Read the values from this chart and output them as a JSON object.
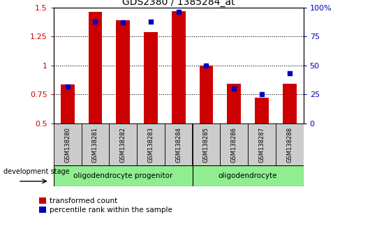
{
  "title": "GDS2380 / 1385284_at",
  "samples": [
    "GSM138280",
    "GSM138281",
    "GSM138282",
    "GSM138283",
    "GSM138284",
    "GSM138285",
    "GSM138286",
    "GSM138287",
    "GSM138288"
  ],
  "transformed_count": [
    0.835,
    1.46,
    1.39,
    1.29,
    1.47,
    1.0,
    0.84,
    0.72,
    0.845
  ],
  "percentile_rank": [
    32,
    88,
    87,
    88,
    96,
    50,
    30,
    25,
    43
  ],
  "ylim_left": [
    0.5,
    1.5
  ],
  "ylim_right": [
    0,
    100
  ],
  "yticks_left": [
    0.5,
    0.75,
    1.0,
    1.25,
    1.5
  ],
  "yticks_right": [
    0,
    25,
    50,
    75,
    100
  ],
  "groups": [
    {
      "label": "oligodendrocyte progenitor",
      "count": 5,
      "color": "#90EE90"
    },
    {
      "label": "oligodendrocyte",
      "count": 4,
      "color": "#90EE90"
    }
  ],
  "bar_color_red": "#CC0000",
  "bar_color_blue": "#0000BB",
  "bar_width": 0.5,
  "blue_marker_size": 4,
  "grid_color": "black",
  "tick_label_color_left": "#CC0000",
  "tick_label_color_right": "#0000BB",
  "legend_red_label": "transformed count",
  "legend_blue_label": "percentile rank within the sample",
  "dev_stage_label": "development stage",
  "group_separator_index": 4.5,
  "n_samples": 9,
  "xlim": [
    -0.5,
    8.5
  ]
}
